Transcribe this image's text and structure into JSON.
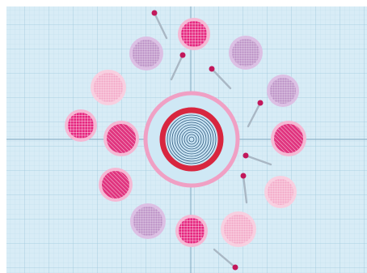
{
  "canvas": {
    "background": "#d8ecf6",
    "grid_minor": "#bcdcea",
    "grid_major": "#9fc8dc",
    "axis": "#7fa9c0",
    "frame": "#ffffff"
  },
  "center_badge": {
    "outer_ring": "#f0a0c4",
    "outer_fill": "#cfe8f5",
    "red_ring": "#d8263f",
    "spiral_color": "#2d5a80",
    "spiral_fill": "#c9e3f2"
  },
  "pin_color": "#c2185b",
  "patches": [
    {
      "name": "patch-top-magenta",
      "fill": "#e6267f",
      "rim": "#f5b8d4",
      "texture": "dots"
    },
    {
      "name": "patch-upper-left-lavender",
      "fill": "#b98cc4",
      "rim": "#dcc0e4",
      "texture": "grid"
    },
    {
      "name": "patch-upper-right-lavender",
      "fill": "#b98cc4",
      "rim": "#dcc0e4",
      "texture": "grid"
    },
    {
      "name": "patch-left-pink",
      "fill": "#f3a6c6",
      "rim": "#f8cfe0",
      "texture": "grid"
    },
    {
      "name": "patch-right-lavender",
      "fill": "#b98cc4",
      "rim": "#dcc0e4",
      "texture": "grid"
    },
    {
      "name": "patch-far-left-magenta",
      "fill": "#e6267f",
      "rim": "#f5b8d4",
      "texture": "dots"
    },
    {
      "name": "patch-left-striped-magenta",
      "fill": "#e0337e",
      "rim": "#f5b8d4",
      "texture": "stripes"
    },
    {
      "name": "patch-right-striped-magenta",
      "fill": "#e0337e",
      "rim": "#f5b8d4",
      "texture": "stripes"
    },
    {
      "name": "patch-lower-left-striped",
      "fill": "#e0337e",
      "rim": "#f5b8d4",
      "texture": "stripes"
    },
    {
      "name": "patch-right-pink",
      "fill": "#f3a6c6",
      "rim": "#f8cfe0",
      "texture": "grid"
    },
    {
      "name": "patch-bottom-left-lavender",
      "fill": "#b98cc4",
      "rim": "#dcc0e4",
      "texture": "grid"
    },
    {
      "name": "patch-bottom-magenta",
      "fill": "#e6267f",
      "rim": "#f5b8d4",
      "texture": "dots"
    },
    {
      "name": "patch-bottom-right-pink",
      "fill": "#f3a6c6",
      "rim": "#f8cfe0",
      "texture": "grid"
    }
  ],
  "pins": [
    {
      "name": "pin-top"
    },
    {
      "name": "pin-upper-center"
    },
    {
      "name": "pin-upper-right"
    },
    {
      "name": "pin-right-upper"
    },
    {
      "name": "pin-right-lower"
    },
    {
      "name": "pin-right-bottom"
    },
    {
      "name": "pin-bottom"
    }
  ]
}
